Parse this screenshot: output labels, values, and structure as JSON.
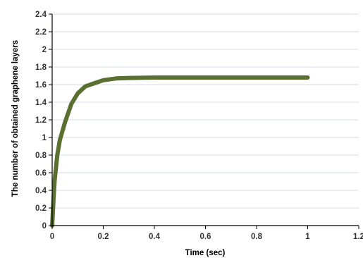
{
  "chart_data": {
    "type": "line",
    "title": "",
    "xlabel": "Time (sec)",
    "ylabel": "The number of obtained graphene layers",
    "xlim": [
      0,
      1.2
    ],
    "ylim": [
      0,
      2.4
    ],
    "x_ticks": [
      "0",
      "0.2",
      "0.4",
      "0.6",
      "0.8",
      "1",
      "1.2"
    ],
    "y_ticks": [
      "0",
      "0.2",
      "0.4",
      "0.6",
      "0.8",
      "1",
      "1.2",
      "1.4",
      "1.6",
      "1.8",
      "2",
      "2.2",
      "2.4"
    ],
    "y_grid": true,
    "x_grid": false,
    "series": [
      {
        "color": "#5a7030",
        "x": [
          0,
          0.005,
          0.01,
          0.02,
          0.03,
          0.05,
          0.075,
          0.1,
          0.13,
          0.17,
          0.2,
          0.25,
          0.3,
          0.4,
          0.6,
          0.8,
          1.0
        ],
        "y": [
          0,
          0.28,
          0.52,
          0.8,
          0.97,
          1.17,
          1.38,
          1.5,
          1.58,
          1.62,
          1.65,
          1.67,
          1.675,
          1.68,
          1.68,
          1.68,
          1.68
        ]
      }
    ]
  },
  "colors": {
    "grid": "#d6dce6",
    "axis": "#000000",
    "line": "#5a7030"
  }
}
